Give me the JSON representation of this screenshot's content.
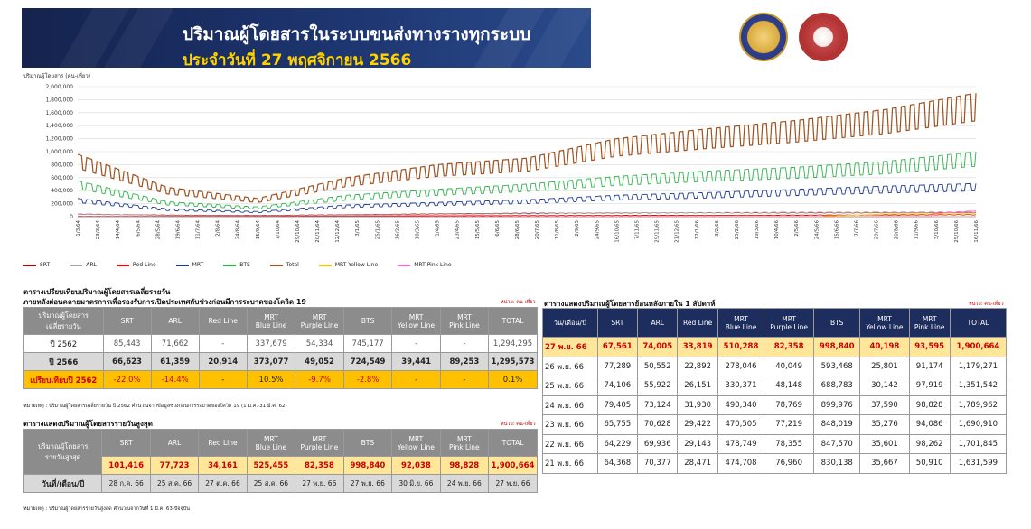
{
  "header": {
    "title_line1": "ปริมาณผู้โดยสารในระบบขนส่งทางรางทุกระบบ",
    "title_line2": "ประจำวันที่ 27 พฤศจิกายน 2566"
  },
  "colors": {
    "SRT": "#c00000",
    "ARL": "#a6a6a6",
    "Red Line": "#ff0000",
    "MRT": "#1f3a93",
    "BTS": "#2db34a",
    "Total": "#a0521e",
    "MRT Yellow Line": "#ffc000",
    "MRT Pink Line": "#ff66cc"
  },
  "chart_data": {
    "type": "line",
    "ylabel": "ปริมาณผู้โดยสาร (คน-เที่ยว)",
    "ylim": [
      0,
      2000000
    ],
    "y_ticks": [
      "0",
      "200,000",
      "400,000",
      "600,000",
      "800,000",
      "1,000,000",
      "1,200,000",
      "1,400,000",
      "1,600,000",
      "1,800,000",
      "2,000,000"
    ],
    "x_tick_labels": [
      "1/3/64",
      "23/3/64",
      "14/4/64",
      "6/5/64",
      "28/5/64",
      "19/6/64",
      "11/7/64",
      "2/8/64",
      "24/8/64",
      "15/9/64",
      "7/10/64",
      "29/10/64",
      "20/11/64",
      "12/12/64",
      "3/1/65",
      "25/1/65",
      "16/2/65",
      "10/3/65",
      "1/4/65",
      "23/4/65",
      "15/5/65",
      "6/6/65",
      "28/6/65",
      "20/7/65",
      "11/8/65",
      "2/9/65",
      "24/9/65",
      "16/10/65",
      "7/11/65",
      "29/11/65",
      "21/12/65",
      "12/1/66",
      "3/2/66",
      "25/2/66",
      "19/3/66",
      "10/4/66",
      "2/5/66",
      "24/5/66",
      "15/6/66",
      "7/7/66",
      "29/7/66",
      "20/8/66",
      "11/9/66",
      "3/10/66",
      "25/10/66",
      "16/11/66"
    ],
    "series": [
      {
        "name": "SRT",
        "approx_level": [
          40000,
          25000,
          20000,
          30000,
          45000,
          55000,
          60000,
          62000,
          64000,
          66000,
          67000
        ]
      },
      {
        "name": "ARL",
        "approx_level": [
          45000,
          20000,
          15000,
          25000,
          40000,
          50000,
          60000,
          65000,
          70000,
          72000,
          74000
        ]
      },
      {
        "name": "Red Line",
        "approx_level": [
          5000,
          5000,
          5000,
          10000,
          15000,
          18000,
          20000,
          22000,
          25000,
          28000,
          33000
        ]
      },
      {
        "name": "MRT",
        "approx_level": [
          280000,
          120000,
          80000,
          180000,
          220000,
          260000,
          330000,
          370000,
          420000,
          470000,
          510000
        ]
      },
      {
        "name": "BTS",
        "approx_level": [
          550000,
          230000,
          150000,
          330000,
          420000,
          500000,
          620000,
          700000,
          760000,
          850000,
          1000000
        ]
      },
      {
        "name": "Total",
        "approx_level": [
          960000,
          450000,
          280000,
          600000,
          800000,
          900000,
          1200000,
          1350000,
          1480000,
          1650000,
          1900000
        ]
      },
      {
        "name": "MRT Yellow Line",
        "approx_level": [
          0,
          0,
          0,
          0,
          0,
          0,
          0,
          0,
          0,
          40000,
          40000
        ]
      },
      {
        "name": "MRT Pink Line",
        "approx_level": [
          0,
          0,
          0,
          0,
          0,
          0,
          0,
          0,
          0,
          0,
          93000
        ]
      }
    ]
  },
  "legend": [
    "SRT",
    "ARL",
    "Red Line",
    "MRT",
    "BTS",
    "Total",
    "MRT Yellow Line",
    "MRT Pink Line"
  ],
  "avg_table": {
    "title_main": "ตารางเปรียบเทียบปริมาณผู้โดยสารเฉลี่ยรายวัน",
    "title_sub": "ภายหลังผ่อนคลายมาตรการเพื่อรองรับการเปิดประเทศกับช่วงก่อนมีการระบาดของโควิด 19",
    "unit": "หน่วย: คน-เที่ยว",
    "header_first": "ปริมาณผู้โดยสาร\nเฉลี่ยรายวัน",
    "headers": [
      "SRT",
      "ARL",
      "Red Line",
      "MRT\nBlue Line",
      "MRT\nPurple Line",
      "BTS",
      "MRT\nYellow Line",
      "MRT\nPink Line",
      "TOTAL"
    ],
    "rows": [
      {
        "label": "ปี 2562",
        "values": [
          "85,443",
          "71,662",
          "-",
          "337,679",
          "54,334",
          "745,177",
          "-",
          "-",
          "1,294,295"
        ]
      },
      {
        "label": "ปี 2566",
        "values": [
          "66,623",
          "61,359",
          "20,914",
          "373,077",
          "49,052",
          "724,549",
          "39,441",
          "89,253",
          "1,295,573"
        ]
      },
      {
        "label": "เปรียบเทียบปี 2562",
        "values": [
          "-22.0%",
          "-14.4%",
          "-",
          "10.5%",
          "-9.7%",
          "-2.8%",
          "-",
          "-",
          "0.1%"
        ]
      }
    ],
    "note": "หมายเหตุ : ปริมาณผู้โดยสารเฉลี่ยรายวัน ปี 2562 คำนวณจากข้อมูลช่วงก่อนการระบาดของโควิด 19 (1 ม.ค.-31 มี.ค. 62)"
  },
  "max_table": {
    "title": "ตารางแสดงปริมาณผู้โดยสารรายวันสูงสุด",
    "unit": "หน่วย: คน-เที่ยว",
    "header_first": "ปริมาณผู้โดยสาร\nรายวันสูงสุด",
    "headers": [
      "SRT",
      "ARL",
      "Red Line",
      "MRT\nBlue Line",
      "MRT\nPurple Line",
      "BTS",
      "MRT\nYellow Line",
      "MRT\nPink Line",
      "TOTAL"
    ],
    "values": [
      "101,416",
      "77,723",
      "34,161",
      "525,455",
      "82,358",
      "998,840",
      "92,038",
      "98,828",
      "1,900,664"
    ],
    "date_label": "วันที่/เดือน/ปี",
    "dates": [
      "28 ก.ค. 66",
      "25 ส.ค. 66",
      "27 ต.ค. 66",
      "25 ส.ค. 66",
      "27 พ.ย. 66",
      "27 พ.ย. 66",
      "30 มิ.ย. 66",
      "24 พ.ย. 66",
      "27 พ.ย. 66"
    ],
    "note": "หมายเหตุ : ปริมาณผู้โดยสารรายวันสูงสุด คำนวณจากวันที่ 1 มี.ค. 63-ปัจจุบัน"
  },
  "daily_table": {
    "title": "ตารางแสดงปริมาณผู้โดยสารย้อนหลังภายใน 1 สัปดาห์",
    "unit": "หน่วย: คน-เที่ยว",
    "header_first": "วัน/เดือน/ปี",
    "headers": [
      "SRT",
      "ARL",
      "Red Line",
      "MRT\nBlue Line",
      "MRT\nPurple Line",
      "BTS",
      "MRT\nYellow Line",
      "MRT\nPink Line",
      "TOTAL"
    ],
    "rows": [
      {
        "date": "27 พ.ย. 66",
        "values": [
          "67,561",
          "74,005",
          "33,819",
          "510,288",
          "82,358",
          "998,840",
          "40,198",
          "93,595",
          "1,900,664"
        ]
      },
      {
        "date": "26 พ.ย. 66",
        "values": [
          "77,289",
          "50,552",
          "22,892",
          "278,046",
          "40,049",
          "593,468",
          "25,801",
          "91,174",
          "1,179,271"
        ]
      },
      {
        "date": "25 พ.ย. 66",
        "values": [
          "74,106",
          "55,922",
          "26,151",
          "330,371",
          "48,148",
          "688,783",
          "30,142",
          "97,919",
          "1,351,542"
        ]
      },
      {
        "date": "24 พ.ย. 66",
        "values": [
          "79,405",
          "73,124",
          "31,930",
          "490,340",
          "78,769",
          "899,976",
          "37,590",
          "98,828",
          "1,789,962"
        ]
      },
      {
        "date": "23 พ.ย. 66",
        "values": [
          "65,755",
          "70,628",
          "29,422",
          "470,505",
          "77,219",
          "848,019",
          "35,276",
          "94,086",
          "1,690,910"
        ]
      },
      {
        "date": "22 พ.ย. 66",
        "values": [
          "64,229",
          "69,936",
          "29,143",
          "478,749",
          "78,355",
          "847,570",
          "35,601",
          "98,262",
          "1,701,845"
        ]
      },
      {
        "date": "21 พ.ย. 66",
        "values": [
          "64,368",
          "70,377",
          "28,471",
          "474,708",
          "76,960",
          "830,138",
          "35,667",
          "50,910",
          "1,631,599"
        ]
      }
    ]
  }
}
